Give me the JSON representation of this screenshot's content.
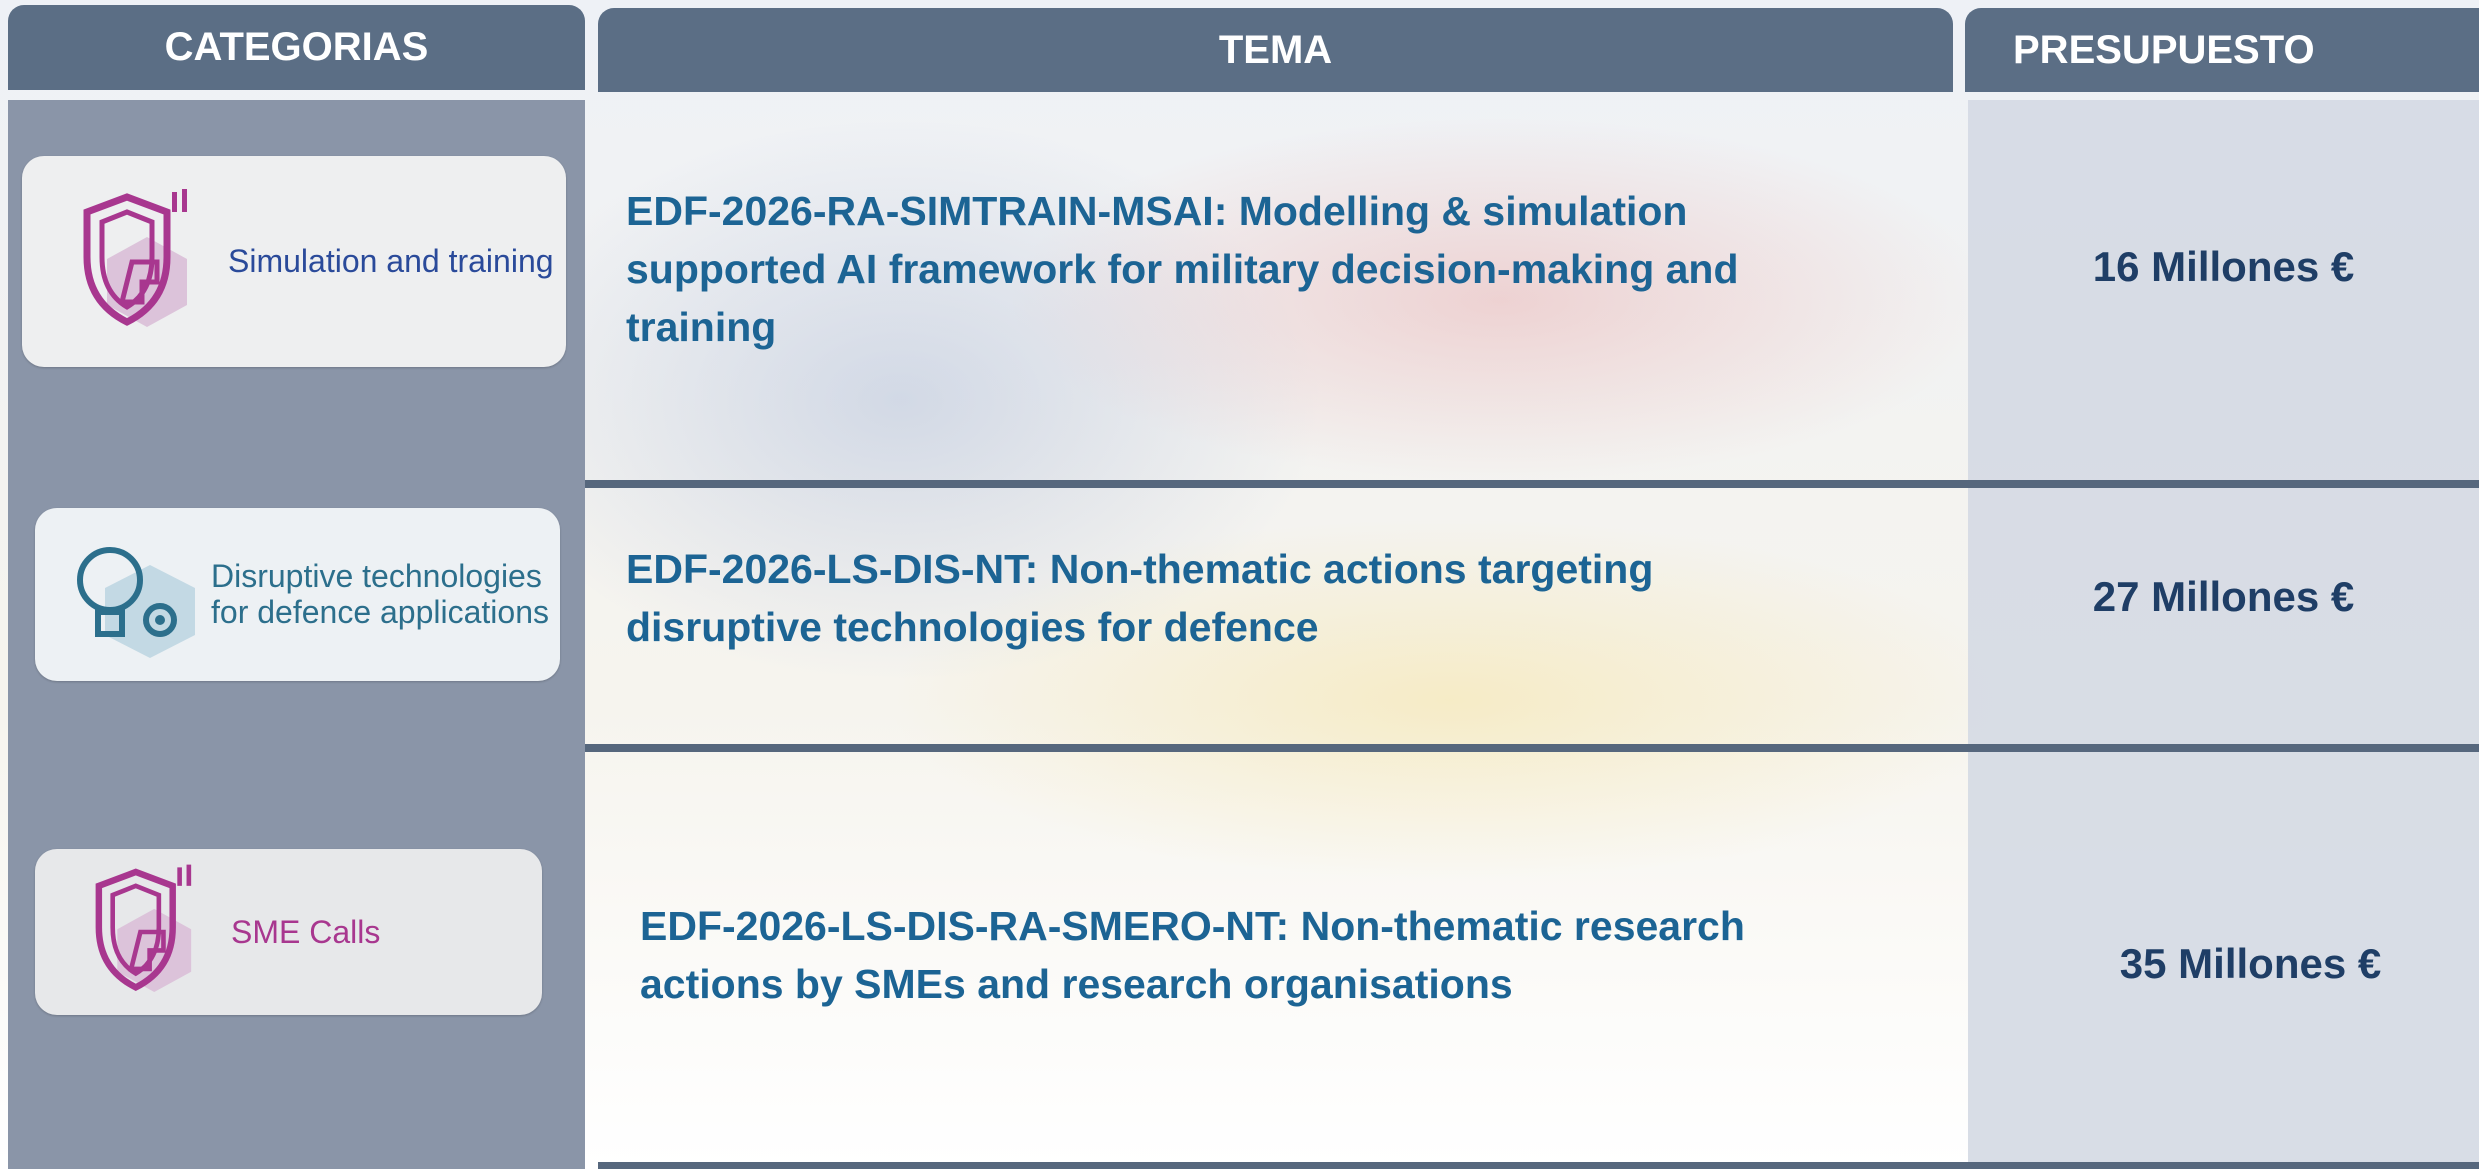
{
  "header": {
    "categorias": "CATEGORIAS",
    "tema": "TEMA",
    "presupuesto": "PRESUPUESTO"
  },
  "rows": [
    {
      "category": "Simulation and training",
      "tema": "EDF-2026-RA-SIMTRAIN-MSAI: Modelling & simulation supported AI framework for military decision-making and training",
      "presupuesto": "16 Millones €"
    },
    {
      "category": "Disruptive technologies for defence applications",
      "tema": "EDF-2026-LS-DIS-NT: Non-thematic actions targeting disruptive technologies for defence",
      "presupuesto": "27 Millones €"
    },
    {
      "category": "SME Calls",
      "tema": "EDF-2026-LS-DIS-RA-SMERO-NT: Non-thematic research actions by SMEs and research organisations",
      "presupuesto": "35 Millones €"
    }
  ]
}
